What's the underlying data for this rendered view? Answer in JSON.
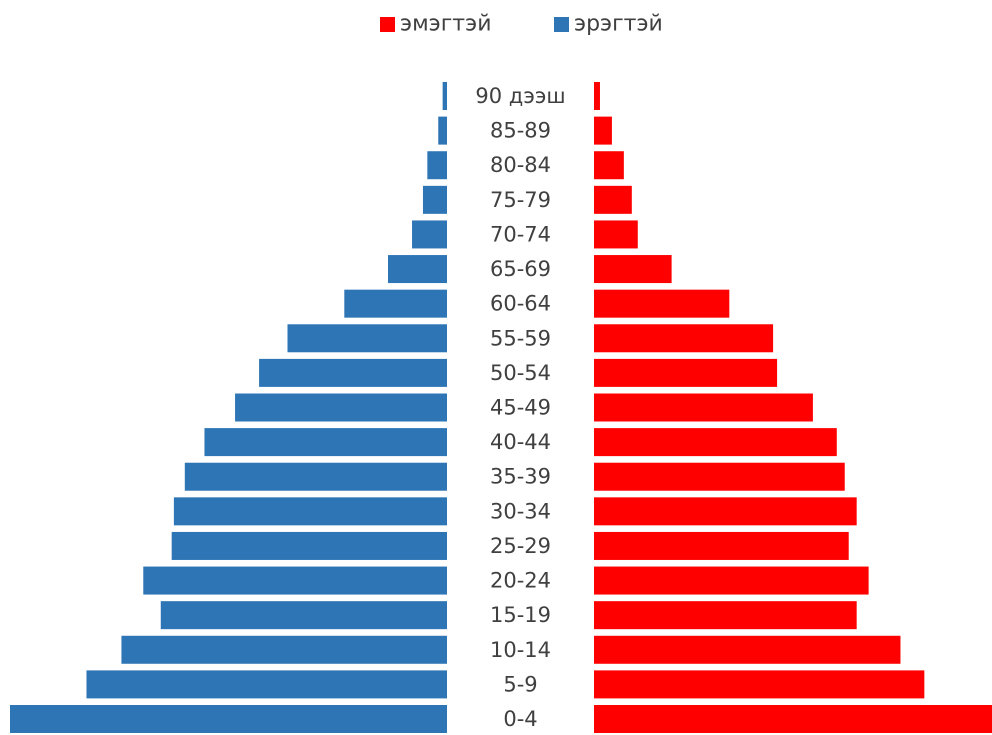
{
  "chart_data": {
    "type": "bar",
    "orientation": "horizontal",
    "layout": "population-pyramid",
    "categories": [
      "0-4",
      "5-9",
      "10-14",
      "15-19",
      "20-24",
      "25-29",
      "30-34",
      "35-39",
      "40-44",
      "45-49",
      "50-54",
      "55-59",
      "60-64",
      "65-69",
      "70-74",
      "75-79",
      "80-84",
      "85-89",
      "90 дээш"
    ],
    "series": [
      {
        "name": "эмэгтэй",
        "color": "#ff0000",
        "side": "right",
        "values": [
          1.0,
          0.83,
          0.77,
          0.66,
          0.69,
          0.64,
          0.66,
          0.63,
          0.61,
          0.55,
          0.46,
          0.45,
          0.34,
          0.195,
          0.11,
          0.095,
          0.075,
          0.045,
          0.015
        ]
      },
      {
        "name": "эрэгтэй",
        "color": "#2e75b6",
        "side": "left",
        "values": [
          1.0,
          0.825,
          0.745,
          0.655,
          0.695,
          0.63,
          0.625,
          0.6,
          0.555,
          0.485,
          0.43,
          0.365,
          0.235,
          0.135,
          0.08,
          0.055,
          0.045,
          0.02,
          0.01
        ]
      }
    ],
    "legend_position": "top-center",
    "grid": false,
    "axes_visible": false
  }
}
